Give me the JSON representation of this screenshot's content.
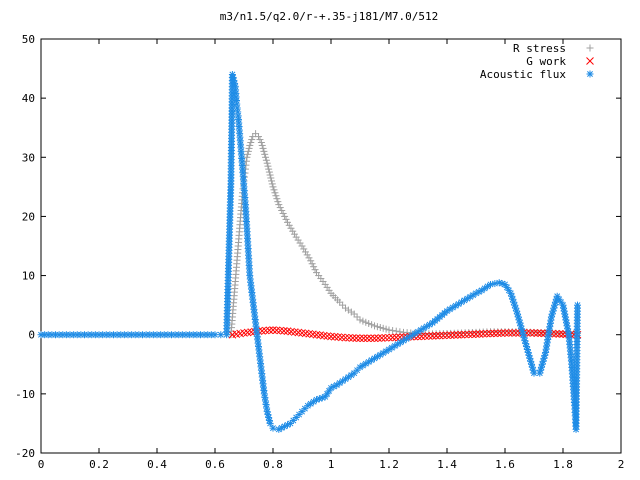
{
  "chart_data": {
    "type": "scatter",
    "title": "m3/n1.5/q2.0/r-+.35-j181/M7.0/512",
    "xlabel": "",
    "ylabel": "",
    "xlim": [
      0,
      2
    ],
    "ylim": [
      -20,
      50
    ],
    "x_ticks": [
      "0",
      "0.2",
      "0.4",
      "0.6",
      "0.8",
      "1",
      "1.2",
      "1.4",
      "1.6",
      "1.8",
      "2"
    ],
    "y_ticks": [
      "-20",
      "-10",
      "0",
      "10",
      "20",
      "30",
      "40",
      "50"
    ],
    "grid": false,
    "legend": "top-right",
    "series": [
      {
        "name": "R stress",
        "marker": "plus",
        "color": "#a0a0a0",
        "x": [
          0.655,
          0.66,
          0.665,
          0.67,
          0.675,
          0.68,
          0.685,
          0.69,
          0.695,
          0.7,
          0.705,
          0.71,
          0.72,
          0.73,
          0.74,
          0.75,
          0.76,
          0.78,
          0.8,
          0.82,
          0.85,
          0.88,
          0.9,
          0.93,
          0.95,
          0.98,
          1.0,
          1.03,
          1.05,
          1.08,
          1.1,
          1.15,
          1.2,
          1.25,
          1.3,
          1.35,
          1.4,
          1.45,
          1.5,
          1.55,
          1.6,
          1.65,
          1.7,
          1.75,
          1.8,
          1.85
        ],
        "y": [
          0,
          3,
          6,
          9,
          12,
          15,
          18,
          21,
          24,
          26,
          28,
          30,
          32,
          33.5,
          34,
          33.5,
          32.5,
          29,
          25,
          22,
          19,
          16.5,
          15,
          12.5,
          10.5,
          8.5,
          7,
          5.5,
          4.5,
          3.5,
          2.5,
          1.5,
          0.8,
          0.4,
          0.2,
          0.15,
          0.2,
          0.3,
          0.4,
          0.5,
          0.5,
          0.5,
          0.4,
          0.3,
          0.2,
          0.2
        ]
      },
      {
        "name": "G work",
        "marker": "cross",
        "color": "#ff0000",
        "x": [
          0.66,
          0.7,
          0.75,
          0.8,
          0.85,
          0.9,
          0.95,
          1.0,
          1.05,
          1.1,
          1.15,
          1.2,
          1.25,
          1.3,
          1.35,
          1.4,
          1.45,
          1.5,
          1.55,
          1.6,
          1.65,
          1.7,
          1.75,
          1.8,
          1.85
        ],
        "y": [
          0,
          0.3,
          0.6,
          0.8,
          0.6,
          0.3,
          0,
          -0.3,
          -0.5,
          -0.6,
          -0.6,
          -0.5,
          -0.4,
          -0.3,
          -0.2,
          -0.1,
          0,
          0.1,
          0.2,
          0.3,
          0.3,
          0.3,
          0.2,
          0.1,
          0
        ]
      },
      {
        "name": "Acoustic flux",
        "marker": "star",
        "color": "#1f8ce6",
        "x": [
          0.0,
          0.05,
          0.1,
          0.15,
          0.2,
          0.25,
          0.3,
          0.35,
          0.4,
          0.45,
          0.5,
          0.55,
          0.6,
          0.62,
          0.64,
          0.655,
          0.66,
          0.665,
          0.67,
          0.675,
          0.68,
          0.685,
          0.69,
          0.695,
          0.7,
          0.705,
          0.71,
          0.715,
          0.72,
          0.73,
          0.74,
          0.75,
          0.76,
          0.77,
          0.78,
          0.79,
          0.8,
          0.82,
          0.84,
          0.86,
          0.88,
          0.9,
          0.92,
          0.95,
          0.98,
          1.0,
          1.02,
          1.05,
          1.08,
          1.1,
          1.15,
          1.2,
          1.25,
          1.3,
          1.35,
          1.4,
          1.45,
          1.5,
          1.52,
          1.55,
          1.58,
          1.6,
          1.62,
          1.64,
          1.66,
          1.68,
          1.7,
          1.72,
          1.74,
          1.76,
          1.78,
          1.8,
          1.82,
          1.83,
          1.84,
          1.845,
          1.85
        ],
        "y": [
          0,
          0,
          0,
          0,
          0,
          0,
          0,
          0,
          0,
          0,
          0,
          0,
          0,
          0,
          0,
          26,
          44,
          43,
          42,
          39,
          37,
          34,
          31,
          28,
          25,
          22,
          18,
          14,
          10,
          6,
          2,
          -2,
          -6,
          -10,
          -13,
          -15,
          -15.8,
          -16,
          -15.5,
          -15,
          -14,
          -13,
          -12,
          -11,
          -10.5,
          -9,
          -8.5,
          -7.5,
          -6.5,
          -5.5,
          -4,
          -2.5,
          -1,
          0.5,
          2,
          4,
          5.5,
          7,
          7.5,
          8.5,
          8.8,
          8.5,
          7,
          4,
          0.5,
          -3,
          -6.5,
          -6.5,
          -3,
          3,
          6.5,
          5,
          0,
          -5,
          -12,
          -16,
          5
        ]
      }
    ]
  }
}
